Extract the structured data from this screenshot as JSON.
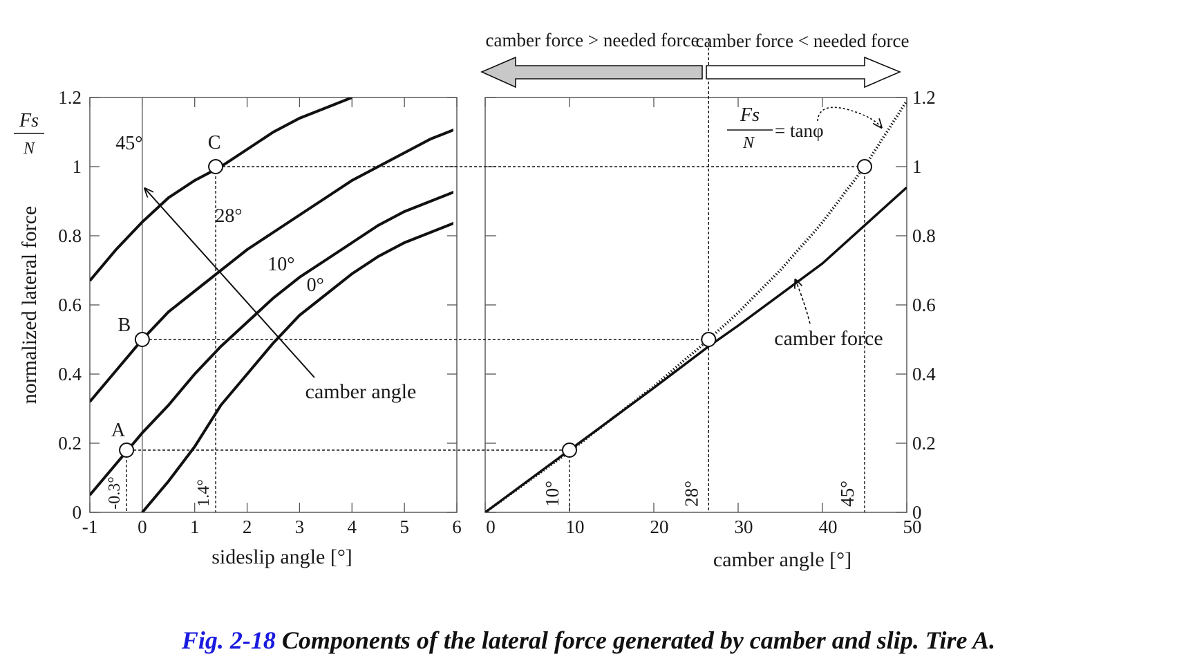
{
  "chart_data": [
    {
      "type": "line",
      "xlabel": "sideslip angle [°]",
      "ylabel": "normalized lateral force",
      "ylabel_fraction": {
        "numerator": "Fs",
        "denominator": "N"
      },
      "xlim": [
        -1,
        6
      ],
      "ylim": [
        0,
        1.2
      ],
      "x_ticks": [
        "-1",
        "0",
        "1",
        "2",
        "3",
        "4",
        "5",
        "6"
      ],
      "y_ticks": [
        "0",
        "0.2",
        "0.4",
        "0.6",
        "0.8",
        "1",
        "1.2"
      ],
      "grid": false,
      "series": [
        {
          "name": "45°",
          "x": [
            -1,
            -0.5,
            0,
            0.5,
            1,
            1.5,
            2,
            2.5,
            3,
            3.5,
            4
          ],
          "y": [
            0.67,
            0.76,
            0.84,
            0.91,
            0.96,
            1.0,
            1.05,
            1.1,
            1.14,
            1.17,
            1.2
          ]
        },
        {
          "name": "28°",
          "x": [
            -1,
            -0.5,
            0,
            0.5,
            1,
            1.5,
            2,
            2.5,
            3,
            3.5,
            4,
            4.5,
            5,
            5.5,
            6
          ],
          "y": [
            0.32,
            0.41,
            0.5,
            0.58,
            0.64,
            0.7,
            0.76,
            0.81,
            0.86,
            0.91,
            0.96,
            1.0,
            1.04,
            1.08,
            1.11
          ]
        },
        {
          "name": "10°",
          "x": [
            -1,
            -0.5,
            0,
            0.5,
            1,
            1.5,
            2,
            2.5,
            3,
            3.5,
            4,
            4.5,
            5,
            5.5,
            6
          ],
          "y": [
            0.05,
            0.14,
            0.23,
            0.31,
            0.4,
            0.48,
            0.55,
            0.62,
            0.68,
            0.73,
            0.78,
            0.83,
            0.87,
            0.9,
            0.93
          ]
        },
        {
          "name": "0°",
          "x": [
            0,
            0.5,
            1,
            1.5,
            2,
            2.5,
            3,
            3.5,
            4,
            4.5,
            5,
            5.5,
            6
          ],
          "y": [
            0.0,
            0.09,
            0.19,
            0.31,
            0.4,
            0.49,
            0.57,
            0.63,
            0.69,
            0.74,
            0.78,
            0.81,
            0.84
          ]
        }
      ],
      "points": [
        {
          "label": "A",
          "x": -0.3,
          "y": 0.18
        },
        {
          "label": "B",
          "x": 0,
          "y": 0.5
        },
        {
          "label": "C",
          "x": 1.4,
          "y": 1.0
        }
      ],
      "annotations": {
        "camber_arrow_label": "camber angle",
        "vline_labels": [
          "-0.3°",
          "1.4°"
        ]
      }
    },
    {
      "type": "line",
      "xlabel": "camber angle [°]",
      "xlim": [
        0,
        50
      ],
      "ylim": [
        0,
        1.2
      ],
      "x_ticks": [
        "0",
        "10",
        "20",
        "30",
        "40",
        "50"
      ],
      "y_ticks": [
        "0",
        "0.2",
        "0.4",
        "0.6",
        "0.8",
        "1",
        "1.2"
      ],
      "y_axis_side": "right",
      "grid": false,
      "series": [
        {
          "name": "camber force",
          "style": "solid",
          "x": [
            0,
            10,
            20,
            26.5,
            30,
            40,
            50
          ],
          "y": [
            0,
            0.18,
            0.36,
            0.48,
            0.54,
            0.72,
            0.94
          ]
        },
        {
          "name": "Fs/N = tanφ",
          "style": "dotted",
          "x": [
            0,
            10,
            20,
            26.5,
            30,
            35,
            40,
            45,
            50
          ],
          "y": [
            0,
            0.176,
            0.364,
            0.5,
            0.577,
            0.7,
            0.839,
            1.0,
            1.19
          ]
        }
      ],
      "points": [
        {
          "x": 10,
          "y": 0.18
        },
        {
          "x": 26.5,
          "y": 0.5
        },
        {
          "x": 45,
          "y": 1.0
        }
      ],
      "annotations": {
        "vline_labels": [
          "10°",
          "28°",
          "45°"
        ],
        "formula": {
          "numerator": "Fs",
          "denominator": "N",
          "rhs": "= tanφ"
        },
        "arrow_left_label": "camber force > needed force",
        "arrow_right_label": "camber force < needed force"
      }
    }
  ],
  "caption": {
    "number": "Fig. 2-18",
    "text": " Components of the lateral force generated by camber and slip. Tire A."
  },
  "colors": {
    "caption_number": "#1a1adf",
    "left_arrow_fill": "#c8c8c8",
    "line": "#111111"
  }
}
